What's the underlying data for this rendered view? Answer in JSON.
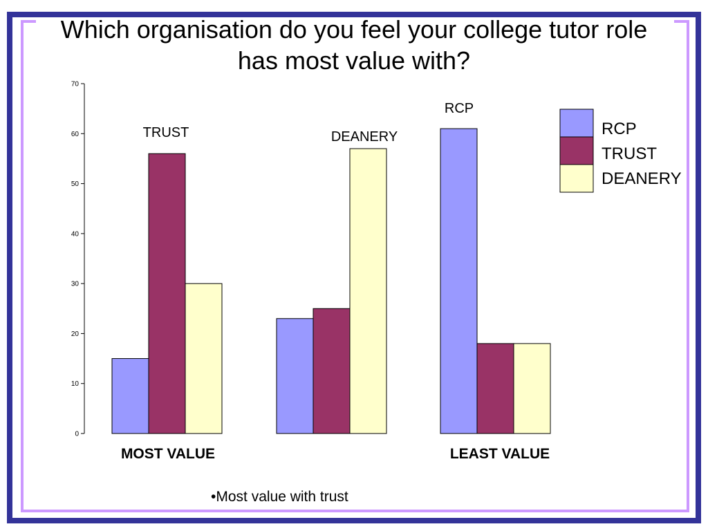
{
  "title": "Which organisation do you feel your college tutor role has most value with?",
  "note": "•Most value with trust",
  "colors": {
    "RCP": "#9999ff",
    "TRUST": "#993366",
    "DEANERY": "#ffffcc",
    "frame_outer": "#333399",
    "frame_inner": "#cc99ff"
  },
  "chart_data": {
    "type": "bar",
    "title": "",
    "xlabel": "",
    "ylabel": "",
    "ylim": [
      0,
      70
    ],
    "yticks": [
      0,
      10,
      20,
      30,
      40,
      50,
      60,
      70
    ],
    "categories": [
      "MOST VALUE",
      "",
      "LEAST VALUE"
    ],
    "series": [
      {
        "name": "RCP",
        "values": [
          15,
          23,
          61
        ]
      },
      {
        "name": "TRUST",
        "values": [
          56,
          25,
          18
        ]
      },
      {
        "name": "DEANERY",
        "values": [
          30,
          57,
          18
        ]
      }
    ],
    "annotations": [
      "TRUST",
      "DEANERY",
      "RCP"
    ],
    "legend": {
      "placement": "top-right",
      "entries": [
        "RCP",
        "TRUST",
        "DEANERY"
      ]
    },
    "grid": false
  }
}
